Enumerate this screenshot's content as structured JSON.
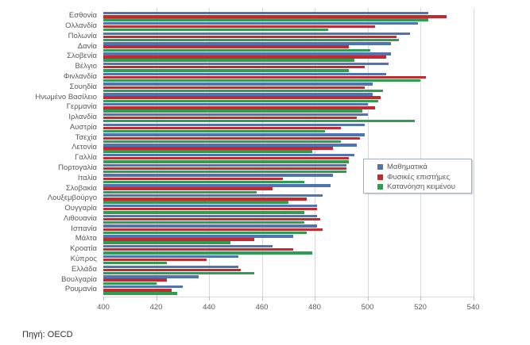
{
  "source": {
    "label": "Πηγή: OECD"
  },
  "chart_data": {
    "type": "bar",
    "orientation": "horizontal",
    "title": "",
    "categories": [
      "Εσθονία",
      "Ολλανδία",
      "Πολωνία",
      "Δανία",
      "Σλοβενία",
      "Βέλγιο",
      "Φινλανδία",
      "Σουηδία",
      "Ηνωμένο Βασίλειο",
      "Γερμανία",
      "Ιρλανδία",
      "Αυστρία",
      "Τσεχία",
      "Λετονία",
      "Γαλλία",
      "Πορτογαλία",
      "Ιταλία",
      "Σλοβακία",
      "Λουξεμβούργο",
      "Ουγγαρία",
      "Λιθουανία",
      "Ισπανία",
      "Μάλτα",
      "Κροατία",
      "Κύπρος",
      "Ελλάδα",
      "Βουλγαρία",
      "Ρουμανία"
    ],
    "series": [
      {
        "name": "Μαθηματικά",
        "color": "#4e74b4",
        "values": [
          523,
          519,
          516,
          509,
          509,
          508,
          507,
          502,
          502,
          500,
          500,
          499,
          499,
          496,
          495,
          492,
          487,
          486,
          483,
          481,
          481,
          481,
          472,
          464,
          451,
          451,
          436,
          430
        ]
      },
      {
        "name": "Φυσικές επιστήμες",
        "color": "#c5282f",
        "values": [
          530,
          503,
          511,
          493,
          507,
          499,
          522,
          499,
          505,
          503,
          496,
          490,
          497,
          487,
          493,
          492,
          468,
          464,
          477,
          481,
          482,
          483,
          457,
          472,
          439,
          452,
          424,
          426
        ]
      },
      {
        "name": "Κατανόηση κειμένου",
        "color": "#2f9e4f",
        "values": [
          523,
          485,
          512,
          501,
          495,
          493,
          520,
          506,
          504,
          498,
          518,
          484,
          490,
          479,
          493,
          492,
          476,
          458,
          470,
          476,
          476,
          477,
          448,
          479,
          424,
          457,
          420,
          428
        ]
      }
    ],
    "xlim": [
      400,
      540
    ],
    "x_ticks": [
      400,
      420,
      440,
      460,
      480,
      500,
      520,
      540
    ],
    "grid": "vertical",
    "gridline_color": "#d9d9d9",
    "axis_label_color": "#595959",
    "legend_position": "middle-right"
  }
}
